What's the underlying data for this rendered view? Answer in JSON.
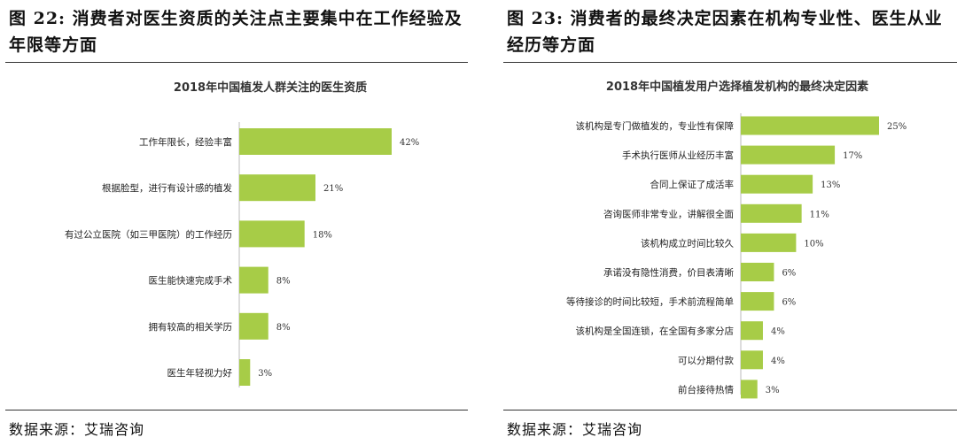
{
  "panels": [
    {
      "caption": "图 22: 消费者对医生资质的关注点主要集中在工作经验及年限等方面",
      "source": "数据来源：艾瑞咨询",
      "colors": {
        "bar": "#a7cc47"
      },
      "chart_data": {
        "type": "bar",
        "orientation": "horizontal",
        "title": "2018年中国植发人群关注的医生资质",
        "categories": [
          "工作年限长，经验丰富",
          "根据脸型，进行有设计感的植发",
          "有过公立医院（如三甲医院）的工作经历",
          "医生能快速完成手术",
          "拥有较高的相关学历",
          "医生年轻视力好"
        ],
        "values": [
          42,
          21,
          18,
          8,
          8,
          3
        ],
        "value_labels": [
          "42%",
          "21%",
          "18%",
          "8%",
          "8%",
          "3%"
        ],
        "xlim": [
          0,
          42
        ],
        "grid": false,
        "legend": "none"
      }
    },
    {
      "caption": "图 23: 消费者的最终决定因素在机构专业性、医生从业经历等方面",
      "source": "数据来源：艾瑞咨询",
      "colors": {
        "bar": "#a7cc47"
      },
      "chart_data": {
        "type": "bar",
        "orientation": "horizontal",
        "title": "2018年中国植发用户选择植发机构的最终决定因素",
        "categories": [
          "该机构是专门做植发的，专业性有保障",
          "手术执行医师从业经历丰富",
          "合同上保证了成活率",
          "咨询医师非常专业，讲解很全面",
          "该机构成立时间比较久",
          "承诺没有隐性消费，价目表清晰",
          "等待接诊的时间比较短，手术前流程简单",
          "该机构是全国连锁，在全国有多家分店",
          "可以分期付款",
          "前台接待热情"
        ],
        "values": [
          25,
          17,
          13,
          11,
          10,
          6,
          6,
          4,
          4,
          3
        ],
        "value_labels": [
          "25%",
          "17%",
          "13%",
          "11%",
          "10%",
          "6%",
          "6%",
          "4%",
          "4%",
          "3%"
        ],
        "xlim": [
          0,
          25
        ],
        "grid": false,
        "legend": "none"
      }
    }
  ]
}
